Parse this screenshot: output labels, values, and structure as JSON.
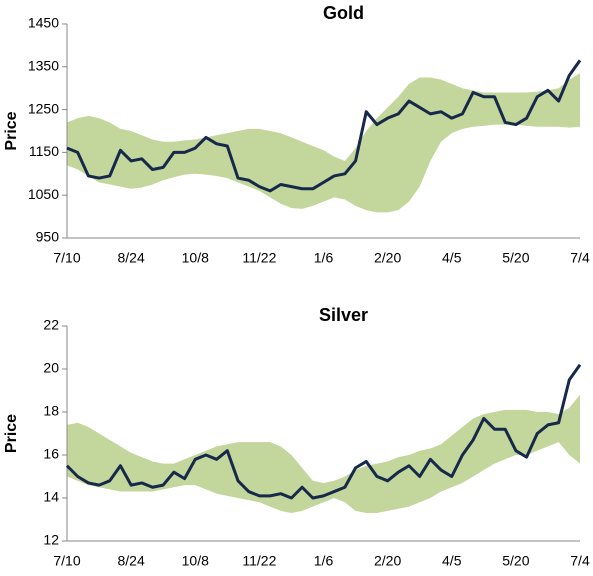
{
  "chart_data": [
    {
      "type": "band-line",
      "title": "Gold",
      "y_label": "Price",
      "categories": [
        "7/10",
        null,
        null,
        null,
        null,
        null,
        "8/24",
        null,
        null,
        null,
        null,
        null,
        "10/8",
        null,
        null,
        null,
        null,
        null,
        "11/22",
        null,
        null,
        null,
        null,
        null,
        "1/6",
        null,
        null,
        null,
        null,
        null,
        "2/20",
        null,
        null,
        null,
        null,
        null,
        "4/5",
        null,
        null,
        null,
        null,
        null,
        "5/20",
        null,
        null,
        null,
        null,
        null,
        "7/4"
      ],
      "ylim": [
        950,
        1450
      ],
      "yticks": [
        950,
        1050,
        1150,
        1250,
        1350,
        1450
      ],
      "band": {
        "color": "#c3d69b",
        "upper": [
          1220,
          1230,
          1235,
          1230,
          1220,
          1205,
          1200,
          1190,
          1180,
          1175,
          1175,
          1178,
          1180,
          1185,
          1190,
          1195,
          1200,
          1205,
          1205,
          1200,
          1195,
          1185,
          1175,
          1165,
          1155,
          1140,
          1130,
          1160,
          1200,
          1230,
          1255,
          1280,
          1310,
          1325,
          1325,
          1320,
          1310,
          1300,
          1295,
          1290,
          1290,
          1290,
          1290,
          1290,
          1292,
          1295,
          1300,
          1320,
          1335
        ],
        "lower": [
          1120,
          1110,
          1095,
          1080,
          1075,
          1070,
          1065,
          1068,
          1075,
          1085,
          1092,
          1098,
          1100,
          1098,
          1095,
          1090,
          1080,
          1070,
          1060,
          1045,
          1030,
          1020,
          1018,
          1025,
          1035,
          1045,
          1040,
          1025,
          1015,
          1010,
          1010,
          1015,
          1035,
          1070,
          1130,
          1175,
          1195,
          1205,
          1210,
          1212,
          1215,
          1215,
          1215,
          1212,
          1210,
          1210,
          1210,
          1208,
          1210
        ]
      },
      "series": [
        {
          "color": "#17294a",
          "values": [
            1160,
            1150,
            1095,
            1090,
            1095,
            1155,
            1130,
            1135,
            1110,
            1115,
            1150,
            1150,
            1160,
            1185,
            1170,
            1165,
            1090,
            1085,
            1070,
            1060,
            1075,
            1070,
            1065,
            1065,
            1080,
            1095,
            1100,
            1130,
            1245,
            1215,
            1230,
            1240,
            1270,
            1255,
            1240,
            1245,
            1230,
            1240,
            1290,
            1280,
            1280,
            1220,
            1215,
            1230,
            1280,
            1295,
            1270,
            1330,
            1365
          ]
        }
      ]
    },
    {
      "type": "band-line",
      "title": "Silver",
      "y_label": "Price",
      "categories": [
        "7/10",
        null,
        null,
        null,
        null,
        null,
        "8/24",
        null,
        null,
        null,
        null,
        null,
        "10/8",
        null,
        null,
        null,
        null,
        null,
        "11/22",
        null,
        null,
        null,
        null,
        null,
        "1/6",
        null,
        null,
        null,
        null,
        null,
        "2/20",
        null,
        null,
        null,
        null,
        null,
        "4/5",
        null,
        null,
        null,
        null,
        null,
        "5/20",
        null,
        null,
        null,
        null,
        null,
        "7/4"
      ],
      "ylim": [
        12,
        22
      ],
      "yticks": [
        12,
        14,
        16,
        18,
        20,
        22
      ],
      "band": {
        "color": "#c3d69b",
        "upper": [
          17.4,
          17.5,
          17.3,
          17.0,
          16.7,
          16.4,
          16.1,
          15.9,
          15.7,
          15.6,
          15.6,
          15.8,
          16.0,
          16.2,
          16.4,
          16.5,
          16.6,
          16.6,
          16.6,
          16.6,
          16.4,
          16.0,
          15.4,
          14.8,
          14.7,
          14.8,
          15.0,
          15.3,
          15.5,
          15.6,
          15.7,
          15.9,
          16.0,
          16.2,
          16.3,
          16.5,
          16.9,
          17.3,
          17.7,
          17.9,
          18.0,
          18.1,
          18.1,
          18.1,
          18.0,
          18.0,
          17.9,
          18.2,
          18.8
        ],
        "lower": [
          15.0,
          14.8,
          14.6,
          14.5,
          14.4,
          14.3,
          14.3,
          14.3,
          14.3,
          14.4,
          14.5,
          14.6,
          14.6,
          14.4,
          14.2,
          14.1,
          14.0,
          13.9,
          13.8,
          13.6,
          13.4,
          13.3,
          13.4,
          13.6,
          13.8,
          14.0,
          13.8,
          13.4,
          13.3,
          13.3,
          13.4,
          13.5,
          13.6,
          13.8,
          14.0,
          14.3,
          14.5,
          14.7,
          15.0,
          15.3,
          15.6,
          15.8,
          16.0,
          16.0,
          16.2,
          16.4,
          16.6,
          16.0,
          15.6
        ]
      },
      "series": [
        {
          "color": "#17294a",
          "values": [
            15.5,
            15.0,
            14.7,
            14.6,
            14.8,
            15.5,
            14.6,
            14.7,
            14.5,
            14.6,
            15.2,
            14.9,
            15.8,
            16.0,
            15.8,
            16.2,
            14.8,
            14.3,
            14.1,
            14.1,
            14.2,
            14.0,
            14.5,
            14.0,
            14.1,
            14.3,
            14.5,
            15.4,
            15.7,
            15.0,
            14.8,
            15.2,
            15.5,
            15.0,
            15.8,
            15.3,
            15.0,
            16.0,
            16.7,
            17.7,
            17.2,
            17.2,
            16.2,
            15.9,
            17.0,
            17.4,
            17.5,
            19.5,
            20.2
          ]
        }
      ]
    }
  ]
}
